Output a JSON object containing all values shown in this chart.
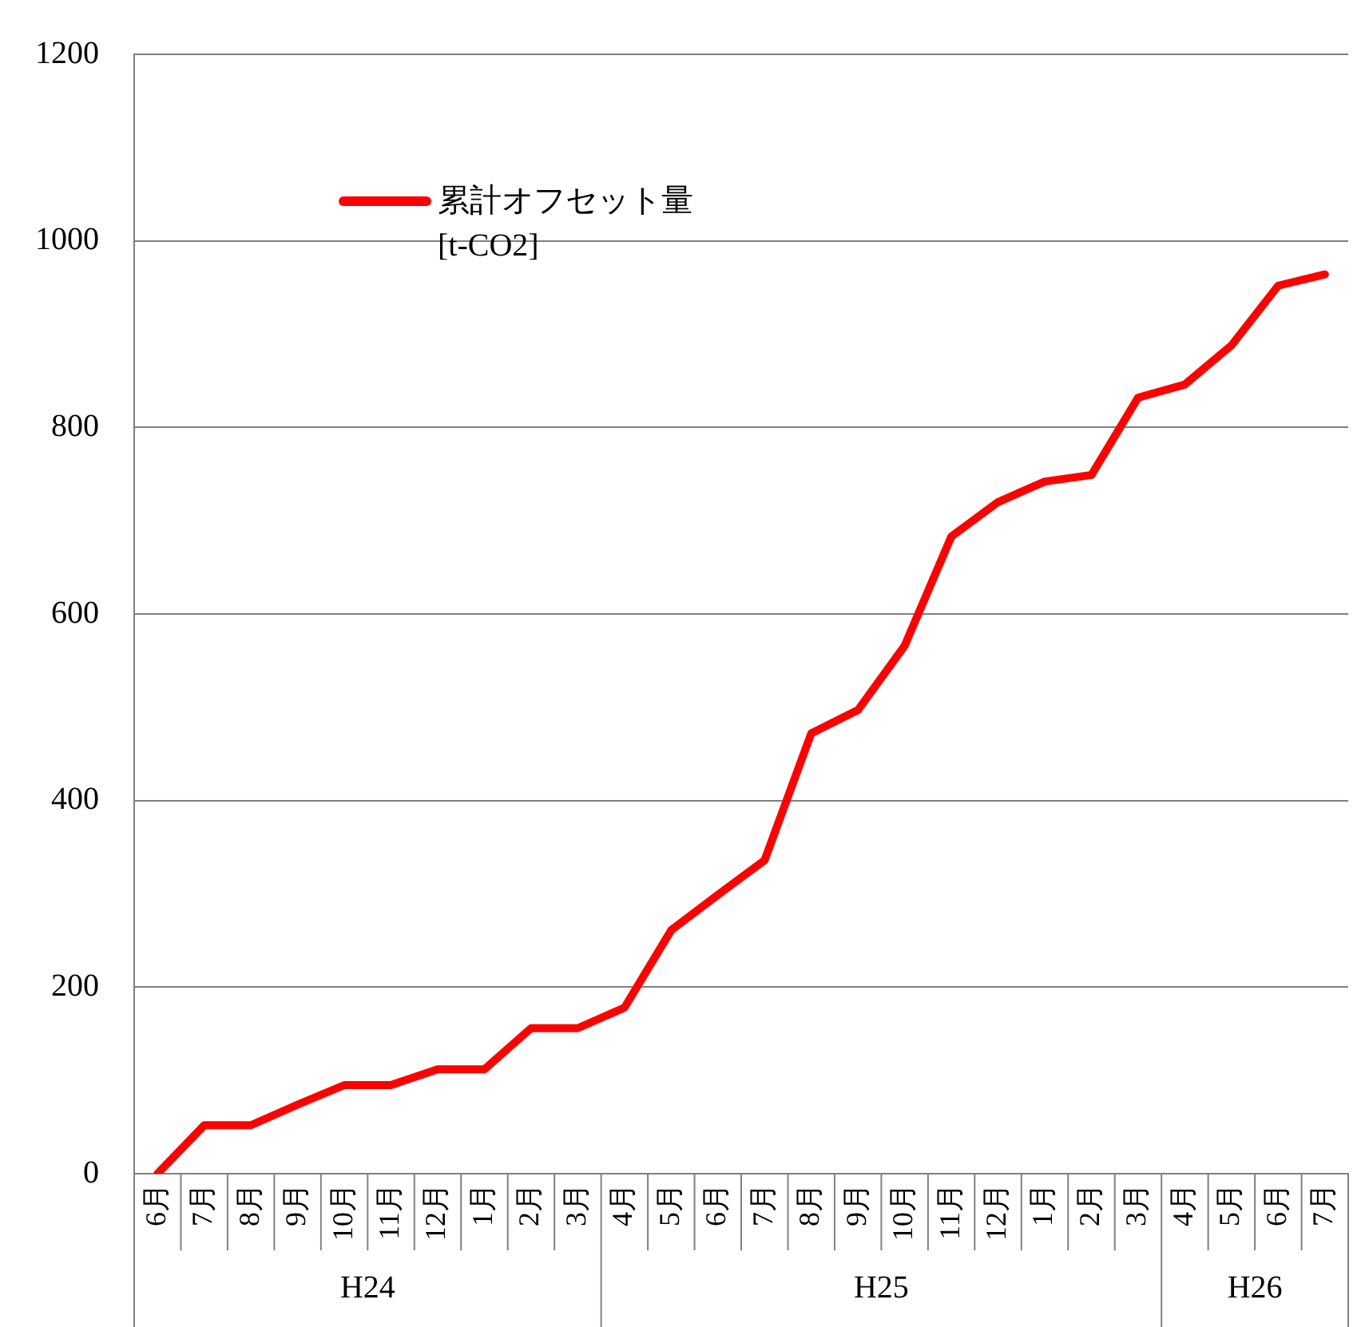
{
  "chart_data": {
    "type": "line",
    "categories": [
      "6月",
      "7月",
      "8月",
      "9月",
      "10月",
      "11月",
      "12月",
      "1月",
      "2月",
      "3月",
      "4月",
      "5月",
      "6月",
      "7月",
      "8月",
      "9月",
      "10月",
      "11月",
      "12月",
      "1月",
      "2月",
      "3月",
      "4月",
      "5月",
      "6月",
      "7月"
    ],
    "series": [
      {
        "name": "累計オフセット量\n[t-CO2]",
        "color": "#ff0000",
        "values": [
          0,
          52,
          52,
          74,
          95,
          95,
          112,
          112,
          156,
          156,
          178,
          261,
          299,
          336,
          472,
          497,
          566,
          683,
          720,
          742,
          749,
          832,
          846,
          888,
          952,
          964
        ]
      }
    ],
    "annotations": [
      "H24",
      "H25",
      "H26"
    ],
    "ylim": [
      0,
      1200
    ],
    "yticks": [
      0,
      200,
      400,
      600,
      800,
      1000,
      1200
    ],
    "grid": "y",
    "legend": "top left",
    "marker": "none",
    "line_style": "solid"
  }
}
